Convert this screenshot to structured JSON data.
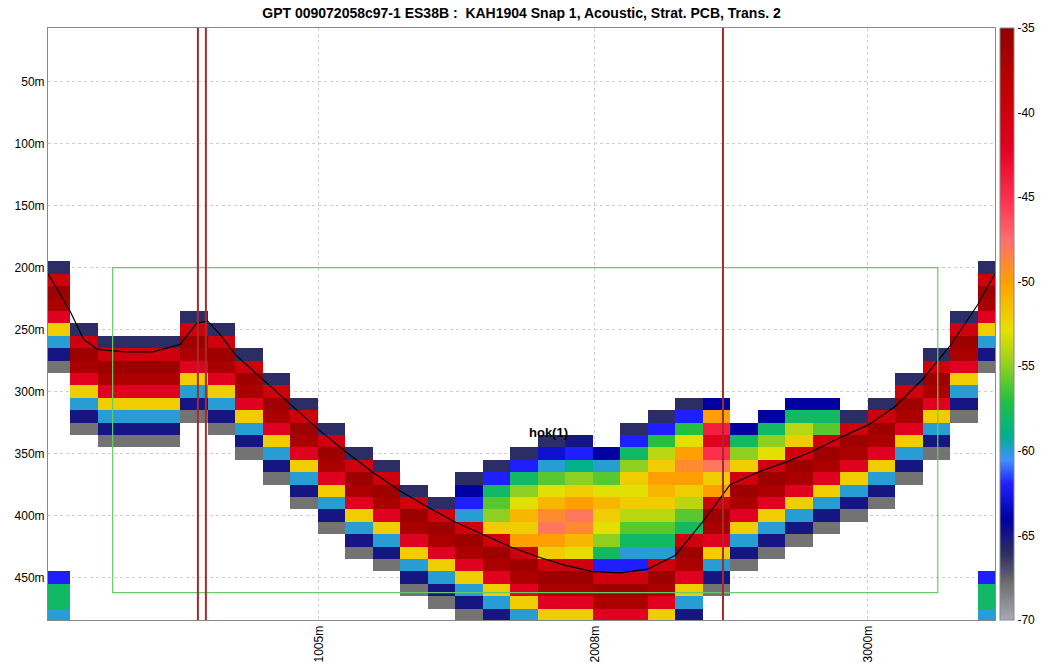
{
  "chart_data": {
    "type": "heatmap",
    "title": "GPT 009072058c97-1 ES38B :  KAH1904 Snap 1, Acoustic, Strat. PCB, Trans. 2",
    "x": [
      50,
      150,
      250,
      350,
      450,
      550,
      650,
      750,
      850,
      950,
      1050,
      1150,
      1250,
      1350,
      1450,
      1550,
      1650,
      1750,
      1850,
      1950,
      2050,
      2150,
      2250,
      2350,
      2450,
      2550,
      2650,
      2750,
      2850,
      2950,
      3050,
      3150,
      3250,
      3350,
      3450
    ],
    "y": [
      190,
      200,
      210,
      220,
      230,
      240,
      250,
      260,
      270,
      280,
      290,
      300,
      310,
      320,
      330,
      340,
      350,
      360,
      370,
      380,
      390,
      400,
      410,
      420,
      430,
      440,
      450,
      460,
      470,
      480
    ],
    "sv_by_column": [
      [
        null,
        -66,
        -40,
        -36,
        -37,
        -42,
        -52,
        -60,
        -65,
        -68,
        null,
        null,
        null,
        null,
        null,
        null,
        null,
        null,
        null,
        null,
        null,
        null,
        null,
        null,
        null,
        null,
        -62,
        -58,
        -58,
        -60
      ],
      [
        null,
        null,
        null,
        null,
        null,
        null,
        -66,
        -40,
        -36,
        -37,
        -42,
        -52,
        -60,
        -65,
        -68,
        null,
        null,
        null,
        null,
        null,
        null,
        null,
        null,
        null,
        null,
        null,
        null,
        null,
        null,
        null
      ],
      [
        null,
        null,
        null,
        null,
        null,
        null,
        null,
        -66,
        -40,
        -36,
        -37,
        -42,
        -52,
        -60,
        -65,
        -68,
        null,
        null,
        null,
        null,
        null,
        null,
        null,
        null,
        null,
        null,
        null,
        null,
        null,
        null
      ],
      [
        null,
        null,
        null,
        null,
        null,
        null,
        null,
        -66,
        -40,
        -36,
        -37,
        -42,
        -52,
        -60,
        -65,
        -68,
        null,
        null,
        null,
        null,
        null,
        null,
        null,
        null,
        null,
        null,
        null,
        null,
        null,
        null
      ],
      [
        null,
        null,
        null,
        null,
        null,
        null,
        null,
        -66,
        -40,
        -36,
        -37,
        -42,
        -52,
        -60,
        -65,
        -68,
        null,
        null,
        null,
        null,
        null,
        null,
        null,
        null,
        null,
        null,
        null,
        null,
        null,
        null
      ],
      [
        null,
        null,
        null,
        null,
        null,
        -66,
        -40,
        -36,
        -37,
        -42,
        -52,
        -60,
        -65,
        -68,
        null,
        null,
        null,
        null,
        null,
        null,
        null,
        null,
        null,
        null,
        null,
        null,
        null,
        null,
        null,
        null
      ],
      [
        null,
        null,
        null,
        null,
        null,
        null,
        -66,
        -40,
        -36,
        -37,
        -42,
        -52,
        -60,
        -65,
        -68,
        null,
        null,
        null,
        null,
        null,
        null,
        null,
        null,
        null,
        null,
        null,
        null,
        null,
        null,
        null
      ],
      [
        null,
        null,
        null,
        null,
        null,
        null,
        null,
        null,
        -66,
        -40,
        -36,
        -37,
        -42,
        -52,
        -60,
        -65,
        -68,
        null,
        null,
        null,
        null,
        null,
        null,
        null,
        null,
        null,
        null,
        null,
        null,
        null
      ],
      [
        null,
        null,
        null,
        null,
        null,
        null,
        null,
        null,
        null,
        null,
        -66,
        -40,
        -36,
        -37,
        -42,
        -52,
        -60,
        -65,
        -68,
        null,
        null,
        null,
        null,
        null,
        null,
        null,
        null,
        null,
        null,
        null
      ],
      [
        null,
        null,
        null,
        null,
        null,
        null,
        null,
        null,
        null,
        null,
        null,
        null,
        -66,
        -40,
        -36,
        -37,
        -42,
        -52,
        -60,
        -65,
        -68,
        null,
        null,
        null,
        null,
        null,
        null,
        null,
        null,
        null
      ],
      [
        null,
        null,
        null,
        null,
        null,
        null,
        null,
        null,
        null,
        null,
        null,
        null,
        null,
        null,
        -66,
        -40,
        -36,
        -37,
        -42,
        -52,
        -60,
        -65,
        -68,
        null,
        null,
        null,
        null,
        null,
        null,
        null
      ],
      [
        null,
        null,
        null,
        null,
        null,
        null,
        null,
        null,
        null,
        null,
        null,
        null,
        null,
        null,
        null,
        null,
        -66,
        -40,
        -36,
        -37,
        -42,
        -52,
        -60,
        -65,
        -68,
        null,
        null,
        null,
        null,
        null
      ],
      [
        null,
        null,
        null,
        null,
        null,
        null,
        null,
        null,
        null,
        null,
        null,
        null,
        null,
        null,
        null,
        null,
        null,
        -66,
        -40,
        -36,
        -37,
        -42,
        -52,
        -60,
        -65,
        -68,
        null,
        null,
        null,
        null
      ],
      [
        null,
        null,
        null,
        null,
        null,
        null,
        null,
        null,
        null,
        null,
        null,
        null,
        null,
        null,
        null,
        null,
        null,
        null,
        null,
        -66,
        -40,
        -36,
        -37,
        -42,
        -52,
        -60,
        -65,
        -68,
        null,
        null
      ],
      [
        null,
        null,
        null,
        null,
        null,
        null,
        null,
        null,
        null,
        null,
        null,
        null,
        null,
        null,
        null,
        null,
        null,
        null,
        null,
        null,
        -66,
        -40,
        -36,
        -37,
        -42,
        -52,
        -60,
        -65,
        -68,
        null
      ],
      [
        null,
        null,
        null,
        null,
        null,
        null,
        null,
        null,
        null,
        null,
        null,
        null,
        null,
        null,
        null,
        null,
        null,
        null,
        -66,
        -64,
        -62,
        -60,
        -40,
        -36,
        -37,
        -42,
        -52,
        -60,
        -65,
        -68
      ],
      [
        null,
        null,
        null,
        null,
        null,
        null,
        null,
        null,
        null,
        null,
        null,
        null,
        null,
        null,
        null,
        null,
        null,
        -66,
        -62,
        -58,
        -56,
        -55,
        -52,
        -40,
        -36,
        -37,
        -42,
        -52,
        -60,
        -65
      ],
      [
        null,
        null,
        null,
        null,
        null,
        null,
        null,
        null,
        null,
        null,
        null,
        null,
        null,
        null,
        null,
        null,
        -66,
        -62,
        -58,
        -55,
        -53,
        -51,
        -52,
        -50,
        -40,
        -36,
        -37,
        -42,
        -52,
        -60
      ],
      [
        null,
        null,
        null,
        null,
        null,
        null,
        null,
        null,
        null,
        null,
        null,
        null,
        null,
        null,
        null,
        -66,
        -63,
        -60,
        -56,
        -53,
        -51,
        -49,
        -48,
        -50,
        -52,
        -40,
        -36,
        -37,
        -42,
        -52
      ],
      [
        null,
        null,
        null,
        null,
        null,
        null,
        null,
        null,
        null,
        null,
        null,
        null,
        null,
        null,
        null,
        -65,
        -62,
        -59,
        -55,
        -52,
        -50,
        -48,
        -49,
        -51,
        -53,
        -40,
        -36,
        -37,
        -42,
        -52
      ],
      [
        null,
        null,
        null,
        null,
        null,
        null,
        null,
        null,
        null,
        null,
        null,
        null,
        null,
        null,
        null,
        null,
        -64,
        -60,
        -56,
        -53,
        -51,
        -52,
        -53,
        -55,
        -58,
        -62,
        -40,
        -36,
        -37,
        -42
      ],
      [
        null,
        null,
        null,
        null,
        null,
        null,
        null,
        null,
        null,
        null,
        null,
        null,
        null,
        null,
        -66,
        -62,
        -58,
        -55,
        -52,
        -53,
        -52,
        -54,
        -56,
        -58,
        -60,
        -62,
        -40,
        -36,
        -37,
        -42
      ],
      [
        null,
        null,
        null,
        null,
        null,
        null,
        null,
        null,
        null,
        null,
        null,
        null,
        null,
        -66,
        -62,
        -57,
        -54,
        -52,
        -50,
        -51,
        -52,
        -54,
        -56,
        -58,
        -60,
        -40,
        -36,
        -37,
        -42,
        -52
      ],
      [
        null,
        null,
        null,
        null,
        null,
        null,
        null,
        null,
        null,
        null,
        null,
        null,
        -66,
        -62,
        -57,
        -53,
        -50,
        -49,
        -50,
        -52,
        -54,
        -56,
        -58,
        -40,
        -36,
        -37,
        -42,
        -52,
        -60,
        -65
      ],
      [
        null,
        null,
        null,
        null,
        null,
        null,
        null,
        null,
        null,
        null,
        null,
        null,
        -64,
        -50,
        -44,
        -42,
        -45,
        -48,
        -52,
        -50,
        -40,
        -36,
        -37,
        -42,
        -52,
        -60,
        -65,
        -68,
        null,
        null
      ],
      [
        null,
        null,
        null,
        null,
        null,
        null,
        null,
        null,
        null,
        null,
        null,
        null,
        null,
        null,
        -64,
        -58,
        -55,
        -52,
        -40,
        -36,
        -37,
        -42,
        -52,
        -60,
        -65,
        -68,
        null,
        null,
        null,
        null
      ],
      [
        null,
        null,
        null,
        null,
        null,
        null,
        null,
        null,
        null,
        null,
        null,
        null,
        null,
        -64,
        -58,
        -55,
        -53,
        -40,
        -36,
        -37,
        -42,
        -52,
        -60,
        -65,
        -68,
        null,
        null,
        null,
        null,
        null
      ],
      [
        null,
        null,
        null,
        null,
        null,
        null,
        null,
        null,
        null,
        null,
        null,
        null,
        -64,
        -58,
        -54,
        -52,
        -40,
        -36,
        -37,
        -42,
        -52,
        -60,
        -65,
        -68,
        null,
        null,
        null,
        null,
        null,
        null
      ],
      [
        null,
        null,
        null,
        null,
        null,
        null,
        null,
        null,
        null,
        null,
        null,
        null,
        -64,
        -58,
        -56,
        -40,
        -36,
        -37,
        -42,
        -52,
        -60,
        -65,
        -68,
        null,
        null,
        null,
        null,
        null,
        null,
        null
      ],
      [
        null,
        null,
        null,
        null,
        null,
        null,
        null,
        null,
        null,
        null,
        null,
        null,
        null,
        -66,
        -40,
        -36,
        -37,
        -42,
        -52,
        -60,
        -65,
        -68,
        null,
        null,
        null,
        null,
        null,
        null,
        null,
        null
      ],
      [
        null,
        null,
        null,
        null,
        null,
        null,
        null,
        null,
        null,
        null,
        null,
        null,
        -66,
        -40,
        -36,
        -37,
        -42,
        -52,
        -60,
        -65,
        -68,
        null,
        null,
        null,
        null,
        null,
        null,
        null,
        null,
        null
      ],
      [
        null,
        null,
        null,
        null,
        null,
        null,
        null,
        null,
        null,
        null,
        -66,
        -40,
        -36,
        -37,
        -42,
        -52,
        -60,
        -65,
        -68,
        null,
        null,
        null,
        null,
        null,
        null,
        null,
        null,
        null,
        null,
        null
      ],
      [
        null,
        null,
        null,
        null,
        null,
        null,
        null,
        null,
        -66,
        -40,
        -36,
        -37,
        -42,
        -52,
        -60,
        -65,
        -68,
        null,
        null,
        null,
        null,
        null,
        null,
        null,
        null,
        null,
        null,
        null,
        null,
        null
      ],
      [
        null,
        null,
        null,
        null,
        null,
        -66,
        -40,
        -36,
        -37,
        -42,
        -52,
        -60,
        -65,
        -68,
        null,
        null,
        null,
        null,
        null,
        null,
        null,
        null,
        null,
        null,
        null,
        null,
        null,
        null,
        null,
        null
      ],
      [
        null,
        -66,
        -40,
        -36,
        -37,
        -42,
        -52,
        -60,
        -65,
        -68,
        null,
        null,
        null,
        null,
        null,
        null,
        null,
        null,
        null,
        null,
        null,
        null,
        null,
        null,
        null,
        null,
        -62,
        -58,
        -58,
        -60
      ]
    ],
    "zlim": [
      -70,
      -35
    ],
    "zticks": [
      -35,
      -40,
      -45,
      -50,
      -55,
      -60,
      -65,
      -70
    ],
    "xlim": [
      20,
      3463
    ],
    "xticks": [
      {
        "value": 1005,
        "label": "1005m"
      },
      {
        "value": 2008,
        "label": "2008m"
      },
      {
        "value": 3000,
        "label": "3000m"
      }
    ],
    "ylim": [
      484,
      7
    ],
    "yticks": [
      {
        "value": 50,
        "label": "50m"
      },
      {
        "value": 100,
        "label": "100m"
      },
      {
        "value": 150,
        "label": "150m"
      },
      {
        "value": 200,
        "label": "200m"
      },
      {
        "value": 250,
        "label": "250m"
      },
      {
        "value": 300,
        "label": "300m"
      },
      {
        "value": 350,
        "label": "350m"
      },
      {
        "value": 400,
        "label": "400m"
      },
      {
        "value": 450,
        "label": "450m"
      }
    ],
    "grid": true,
    "bottom_line": {
      "color": "#000000",
      "x": [
        20,
        100,
        150,
        200,
        300,
        400,
        500,
        560,
        600,
        650,
        700,
        800,
        900,
        1000,
        1100,
        1200,
        1300,
        1400,
        1500,
        1600,
        1700,
        1800,
        1900,
        2000,
        2100,
        2200,
        2300,
        2400,
        2500,
        2600,
        2700,
        2800,
        2900,
        3000,
        3100,
        3200,
        3300,
        3400,
        3463
      ],
      "y": [
        205,
        235,
        258,
        266,
        268,
        268,
        262,
        245,
        243,
        255,
        270,
        290,
        310,
        330,
        348,
        365,
        380,
        393,
        405,
        415,
        425,
        433,
        440,
        445,
        446,
        443,
        432,
        405,
        375,
        365,
        357,
        348,
        337,
        327,
        312,
        290,
        263,
        230,
        205
      ]
    },
    "markers": {
      "color": "#a52a2a",
      "x": [
        565,
        594,
        2474
      ]
    },
    "region": {
      "color": "#66cc66",
      "x": [
        255,
        3255
      ],
      "y": [
        200,
        462
      ]
    },
    "annotations": [
      {
        "text": "hok(1)",
        "x": 1840,
        "y": 333
      }
    ]
  }
}
